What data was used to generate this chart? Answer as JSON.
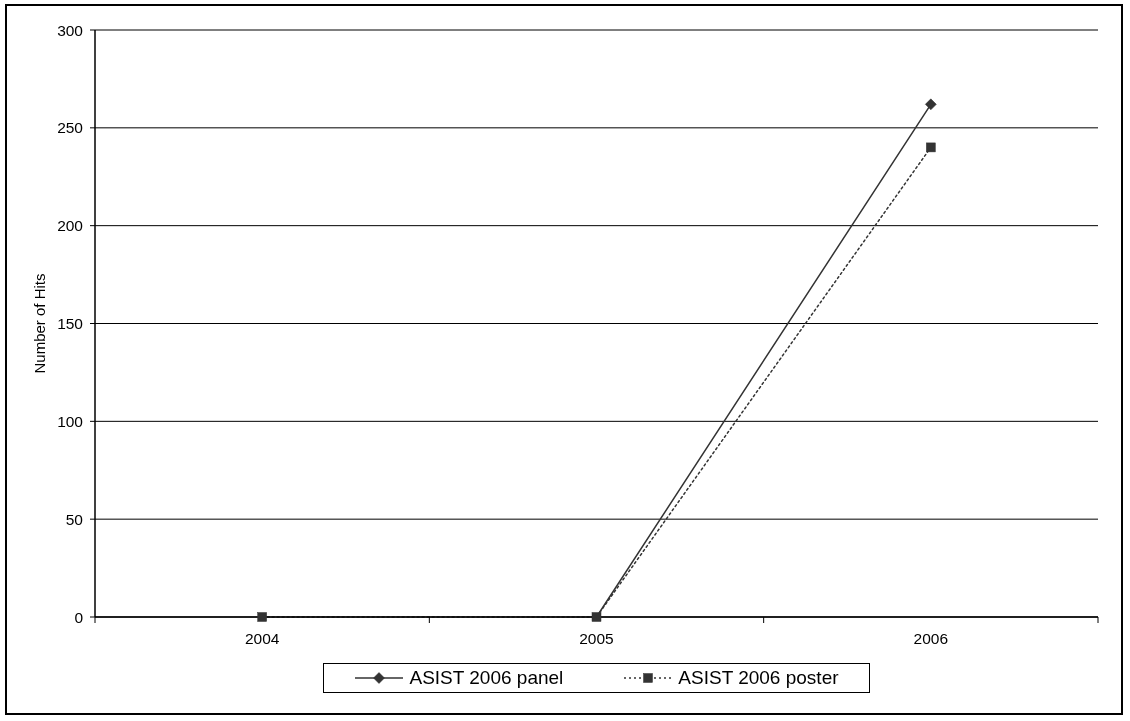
{
  "chart_data": {
    "type": "line",
    "ylabel": "Number of Hits",
    "categories": [
      "2004",
      "2005",
      "2006"
    ],
    "series": [
      {
        "name": "ASIST 2006 panel",
        "color": "#333333",
        "values": [
          null,
          0,
          262
        ],
        "marker": "diamond",
        "line_style": "solid"
      },
      {
        "name": "ASIST 2006 poster",
        "color": "#333333",
        "values": [
          0,
          0,
          240
        ],
        "marker": "square",
        "line_style": "dotted"
      }
    ],
    "ylim": [
      0,
      300
    ],
    "yticks": [
      0,
      50,
      100,
      150,
      200,
      250,
      300
    ],
    "grid": "y",
    "legend": "bottom"
  }
}
